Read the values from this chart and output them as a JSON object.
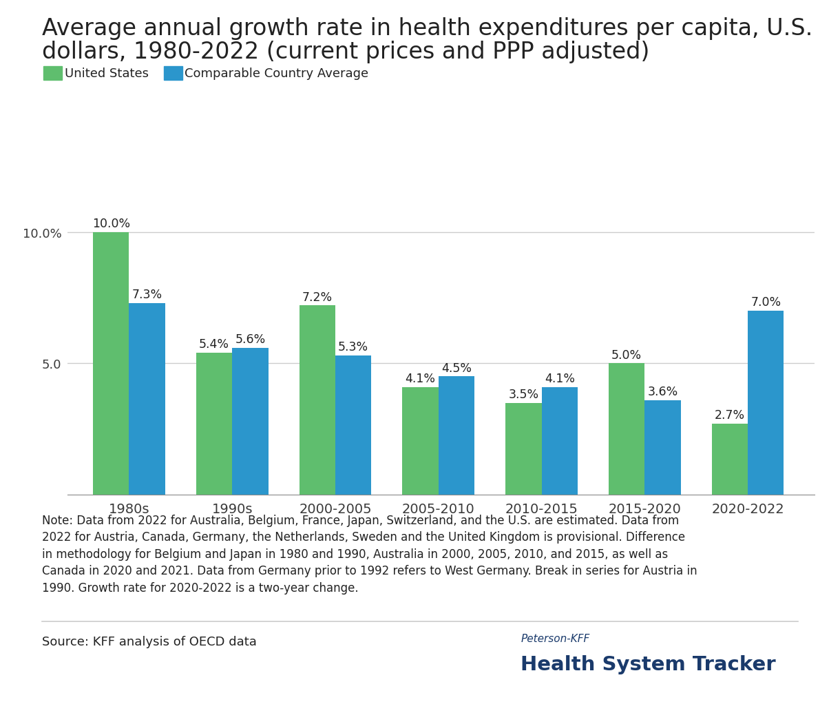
{
  "title_line1": "Average annual growth rate in health expenditures per capita, U.S.",
  "title_line2": "dollars, 1980-2022 (current prices and PPP adjusted)",
  "categories": [
    "1980s",
    "1990s",
    "2000-2005",
    "2005-2010",
    "2010-2015",
    "2015-2020",
    "2020-2022"
  ],
  "us_values": [
    10.0,
    5.4,
    7.2,
    4.1,
    3.5,
    5.0,
    2.7
  ],
  "comp_values": [
    7.3,
    5.6,
    5.3,
    4.5,
    4.1,
    3.6,
    7.0
  ],
  "us_labels": [
    "10.0%",
    "5.4%",
    "7.2%",
    "4.1%",
    "3.5%",
    "5.0%",
    "2.7%"
  ],
  "comp_labels": [
    "7.3%",
    "5.6%",
    "5.3%",
    "4.5%",
    "4.1%",
    "3.6%",
    "7.0%"
  ],
  "us_color": "#5fbe6e",
  "comp_color": "#2b96cc",
  "us_legend": "United States",
  "comp_legend": "Comparable Country Average",
  "ylim": [
    0,
    11.5
  ],
  "note_line1": "Note: Data from 2022 for Australia, Belgium, France, Japan, Switzerland, and the U.S. are estimated. Data from",
  "note_line2": "2022 for Austria, Canada, Germany, the Netherlands, Sweden and the United Kingdom is provisional. Difference",
  "note_line3": "in methodology for Belgium and Japan in 1980 and 1990, Australia in 2000, 2005, 2010, and 2015, as well as",
  "note_line4": "Canada in 2020 and 2021. Data from Germany prior to 1992 refers to West Germany. Break in series for Austria in",
  "note_line5": "1990. Growth rate for 2020-2022 is a two-year change.",
  "source": "Source: KFF analysis of OECD data",
  "peterson_kff": "Peterson-KFF",
  "health_tracker": "Health System Tracker",
  "background_color": "#ffffff",
  "grid_color": "#cccccc",
  "text_color": "#3a3a3a",
  "dark_text": "#222222",
  "bar_width": 0.35,
  "label_fontsize": 12.5,
  "title_fontsize": 24,
  "tick_fontsize": 13,
  "legend_fontsize": 13,
  "note_fontsize": 12,
  "source_fontsize": 13,
  "brand_color": "#1a3a6b",
  "divider_color": "#cccccc"
}
